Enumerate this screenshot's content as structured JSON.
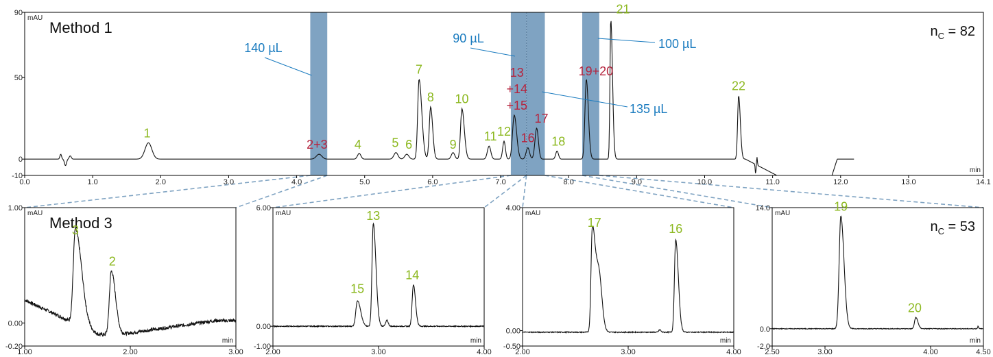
{
  "colors": {
    "green": "#8cb81f",
    "red": "#b5243e",
    "blue": "#1a7bbf",
    "band": "#7fa3c2",
    "line": "#111111"
  },
  "chart_data": [
    {
      "type": "line",
      "panel": "method1",
      "title": "Method 1",
      "nc_label": "n",
      "nc_sub": "C",
      "nc_value": " = 82",
      "ylabel": "mAU",
      "xlabel": "min",
      "xlim": [
        0.0,
        14.1
      ],
      "ylim": [
        -10,
        90
      ],
      "xticks": [
        "0.0",
        "1.0",
        "2.0",
        "3.0",
        "4.0",
        "5.0",
        "6.0",
        "7.0",
        "8.0",
        "9.0",
        "10.0",
        "11.0",
        "12.0",
        "13.0",
        "14.1"
      ],
      "yticks": [
        "-10",
        "0",
        "50",
        "90"
      ],
      "peaks": [
        {
          "label": "1",
          "x": 1.8,
          "y": 10,
          "color": "green"
        },
        {
          "label": "2+3",
          "x": 4.3,
          "y": 3,
          "color": "red"
        },
        {
          "label": "4",
          "x": 4.9,
          "y": 3,
          "color": "green"
        },
        {
          "label": "5",
          "x": 5.45,
          "y": 4,
          "color": "green"
        },
        {
          "label": "6",
          "x": 5.65,
          "y": 3,
          "color": "green"
        },
        {
          "label": "7",
          "x": 5.8,
          "y": 49,
          "color": "green"
        },
        {
          "label": "8",
          "x": 5.97,
          "y": 32,
          "color": "green"
        },
        {
          "label": "9",
          "x": 6.3,
          "y": 3,
          "color": "green"
        },
        {
          "label": "10",
          "x": 6.43,
          "y": 31,
          "color": "green"
        },
        {
          "label": "11",
          "x": 6.85,
          "y": 8,
          "color": "green"
        },
        {
          "label": "12",
          "x": 7.05,
          "y": 11,
          "color": "green"
        },
        {
          "label": "13\n+14\n+15",
          "x": 7.3,
          "y": 27,
          "color": "red"
        },
        {
          "label": "16",
          "x": 7.4,
          "y": 7,
          "color": "red"
        },
        {
          "label": "17",
          "x": 7.6,
          "y": 19,
          "color": "red"
        },
        {
          "label": "18",
          "x": 7.85,
          "y": 5,
          "color": "green"
        },
        {
          "label": "19+20",
          "x": 8.4,
          "y": 48,
          "color": "red"
        },
        {
          "label": "21",
          "x": 8.8,
          "y": 86,
          "color": "green"
        },
        {
          "label": "22",
          "x": 10.5,
          "y": 39,
          "color": "green"
        }
      ],
      "fractions": [
        {
          "volume": "140 µL",
          "range": [
            4.2,
            4.45
          ]
        },
        {
          "volume": "90 µL",
          "range": [
            7.15,
            7.38
          ]
        },
        {
          "volume": "135 µL",
          "range": [
            7.38,
            7.65
          ]
        },
        {
          "volume": "100 µL",
          "range": [
            8.2,
            8.45
          ]
        }
      ]
    },
    {
      "type": "line",
      "panel": "fraction1",
      "title": "Method 3",
      "ylabel": "mAU",
      "xlabel": "min",
      "xlim": [
        1.0,
        3.0
      ],
      "ylim": [
        -0.2,
        1.0
      ],
      "xticks": [
        "1.00",
        "2.00",
        "3.00"
      ],
      "yticks": [
        "-0.20",
        "0.00",
        "1.00"
      ],
      "peaks": [
        {
          "label": "3",
          "x": 1.48,
          "y": 0.72,
          "color": "green"
        },
        {
          "label": "2",
          "x": 1.83,
          "y": 0.45,
          "color": "green"
        }
      ]
    },
    {
      "type": "line",
      "panel": "fraction2",
      "ylabel": "mAU",
      "xlabel": "min",
      "xlim": [
        2.0,
        4.0
      ],
      "ylim": [
        -1.0,
        6.0
      ],
      "xticks": [
        "2.00",
        "3.00",
        "4.00"
      ],
      "yticks": [
        "-1.00",
        "0.00",
        "6.00"
      ],
      "peaks": [
        {
          "label": "15",
          "x": 2.8,
          "y": 1.4,
          "color": "green"
        },
        {
          "label": "13",
          "x": 2.95,
          "y": 5.1,
          "color": "green"
        },
        {
          "label": "14",
          "x": 3.32,
          "y": 2.1,
          "color": "green"
        }
      ]
    },
    {
      "type": "line",
      "panel": "fraction3",
      "ylabel": "mAU",
      "xlabel": "min",
      "xlim": [
        2.0,
        4.0
      ],
      "ylim": [
        -0.5,
        4.0
      ],
      "xticks": [
        "2.00",
        "3.00",
        "4.00"
      ],
      "yticks": [
        "-0.50",
        "0.00",
        "4.00"
      ],
      "peaks": [
        {
          "label": "17",
          "x": 2.68,
          "y": 3.2,
          "color": "green"
        },
        {
          "label": "16",
          "x": 3.45,
          "y": 3.0,
          "color": "green"
        }
      ]
    },
    {
      "type": "line",
      "panel": "fraction4",
      "nc_label": "n",
      "nc_sub": "C",
      "nc_value": " = 53",
      "ylabel": "mAU",
      "xlabel": "min",
      "xlim": [
        2.5,
        4.5
      ],
      "ylim": [
        -2.0,
        14.0
      ],
      "xticks": [
        "2.50",
        "3.00",
        "4.00",
        "4.50"
      ],
      "yticks": [
        "-2.0",
        "0.0",
        "14.0"
      ],
      "peaks": [
        {
          "label": "19",
          "x": 3.15,
          "y": 13.0,
          "color": "green"
        },
        {
          "label": "20",
          "x": 3.85,
          "y": 1.3,
          "color": "green"
        }
      ]
    }
  ]
}
